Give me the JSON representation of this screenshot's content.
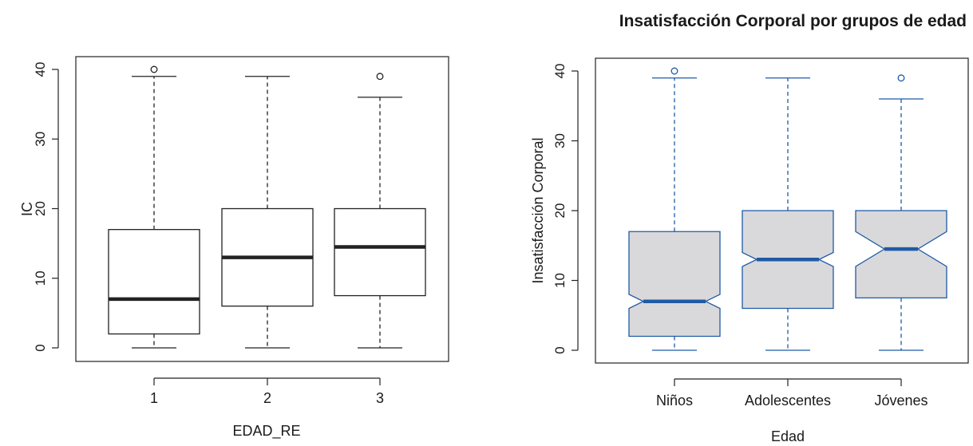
{
  "chart_data": [
    {
      "type": "boxplot",
      "title": "",
      "xlabel": "EDAD_RE",
      "ylabel": "IC",
      "ylim": [
        0,
        40
      ],
      "yticks": [
        "0",
        "10",
        "20",
        "30",
        "40"
      ],
      "categories": [
        "1",
        "2",
        "3"
      ],
      "notched": false,
      "box_fill": "#ffffff",
      "line_color": "#222222",
      "boxes": [
        {
          "category": "1",
          "whisker_low": 0,
          "q1": 2,
          "median": 7,
          "q3": 17,
          "whisker_high": 39,
          "outliers": [
            40
          ]
        },
        {
          "category": "2",
          "whisker_low": 0,
          "q1": 6,
          "median": 13,
          "q3": 20,
          "whisker_high": 39,
          "outliers": []
        },
        {
          "category": "3",
          "whisker_low": 0,
          "q1": 7.5,
          "median": 14.5,
          "q3": 20,
          "whisker_high": 36,
          "outliers": [
            39
          ]
        }
      ]
    },
    {
      "type": "boxplot",
      "title": "Insatisfacción Corporal por grupos de edad",
      "xlabel": "Edad",
      "ylabel": "Insatisfacción Corporal",
      "ylim": [
        0,
        40
      ],
      "yticks": [
        "0",
        "10",
        "20",
        "30",
        "40"
      ],
      "categories": [
        "Niños",
        "Adolescentes",
        "Jóvenes"
      ],
      "notched": true,
      "box_fill": "#d9d9db",
      "line_color": "#1f5aa6",
      "boxes": [
        {
          "category": "Niños",
          "whisker_low": 0,
          "q1": 2,
          "median": 7,
          "q3": 17,
          "whisker_high": 39,
          "outliers": [
            40
          ],
          "notch_low": 6,
          "notch_high": 8
        },
        {
          "category": "Adolescentes",
          "whisker_low": 0,
          "q1": 6,
          "median": 13,
          "q3": 20,
          "whisker_high": 39,
          "outliers": [],
          "notch_low": 12,
          "notch_high": 14
        },
        {
          "category": "Jóvenes",
          "whisker_low": 0,
          "q1": 7.5,
          "median": 14.5,
          "q3": 20,
          "whisker_high": 36,
          "outliers": [
            39
          ],
          "notch_low": 12,
          "notch_high": 17
        }
      ]
    }
  ]
}
